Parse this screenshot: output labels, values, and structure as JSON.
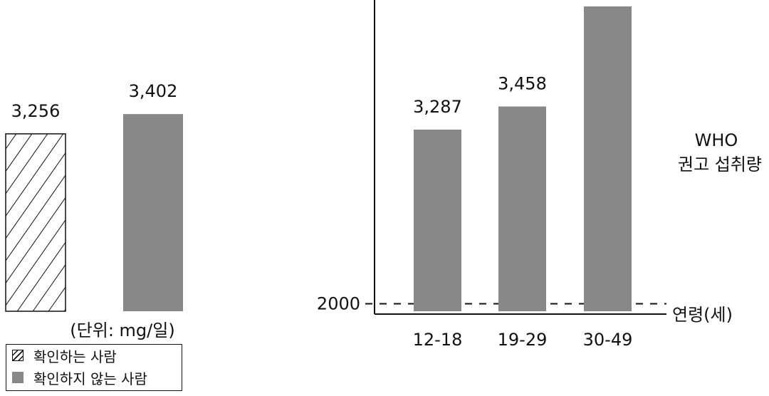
{
  "colors": {
    "gray_bar": "#888888",
    "line": "#111111",
    "background": "#ffffff"
  },
  "unit_label": "(단위: mg/일)",
  "legend": {
    "items": [
      {
        "label": "확인하는 사람",
        "style": "hatched"
      },
      {
        "label": "확인하지 않는 사람",
        "style": "solid-gray"
      }
    ]
  },
  "chart_data": [
    {
      "type": "bar",
      "categories": [
        "확인하는 사람",
        "확인하지 않는 사람"
      ],
      "values": [
        3256,
        3402
      ],
      "value_labels": [
        "3,256",
        "3,402"
      ],
      "bar_styles": [
        "hatched",
        "solid-gray"
      ],
      "title": "",
      "xlabel": "",
      "ylabel": ""
    },
    {
      "type": "bar",
      "categories": [
        "12-18",
        "19-29",
        "30-49"
      ],
      "values": [
        3287,
        3458,
        null
      ],
      "value_labels": [
        "3,287",
        "3,458",
        ""
      ],
      "reference_line": {
        "value": 2000,
        "tick_label": "2000",
        "label_lines": [
          "WHO",
          "권고 섭취량"
        ],
        "style": "dashed"
      },
      "xlabel": "연령(세)",
      "ylabel": "",
      "title": ""
    }
  ]
}
